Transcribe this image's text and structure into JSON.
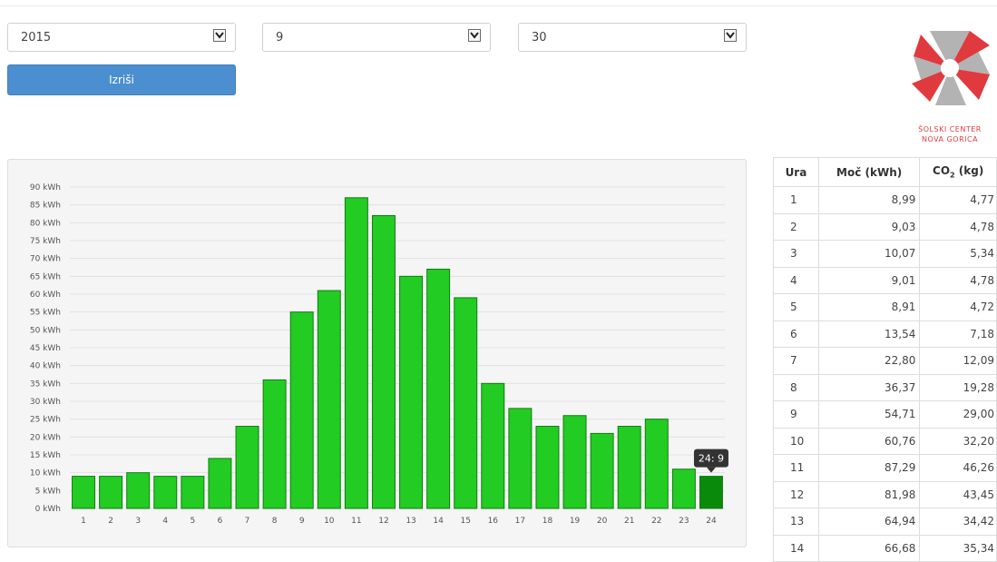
{
  "filters": {
    "year": "2015",
    "month": "9",
    "day": "30",
    "button_label": "Izriši"
  },
  "logo": {
    "line1": "ŠOLSKI CENTER",
    "line2": "NOVA GORICA"
  },
  "chart_data": {
    "type": "bar",
    "categories": [
      "1",
      "2",
      "3",
      "4",
      "5",
      "6",
      "7",
      "8",
      "9",
      "10",
      "11",
      "12",
      "13",
      "14",
      "15",
      "16",
      "17",
      "18",
      "19",
      "20",
      "21",
      "22",
      "23",
      "24"
    ],
    "values": [
      9,
      9,
      10,
      9,
      9,
      14,
      23,
      36,
      55,
      61,
      87,
      82,
      65,
      67,
      59,
      35,
      28,
      23,
      26,
      21,
      23,
      25,
      11,
      9
    ],
    "ylim": [
      0,
      90
    ],
    "ytick_step": 5,
    "ytick_suffix": " kWh",
    "bar_color": "#22cc22",
    "bar_stroke": "#137a13",
    "highlight_color": "#0a8a0a",
    "highlight_index": 23,
    "tooltip": "24: 9",
    "grid": true,
    "title": "",
    "xlabel": "",
    "ylabel": ""
  },
  "table": {
    "headers": [
      "Ura",
      "Moč (kWh)",
      "CO",
      "2",
      " (kg)"
    ],
    "rows": [
      [
        "1",
        "8,99",
        "4,77"
      ],
      [
        "2",
        "9,03",
        "4,78"
      ],
      [
        "3",
        "10,07",
        "5,34"
      ],
      [
        "4",
        "9,01",
        "4,78"
      ],
      [
        "5",
        "8,91",
        "4,72"
      ],
      [
        "6",
        "13,54",
        "7,18"
      ],
      [
        "7",
        "22,80",
        "12,09"
      ],
      [
        "8",
        "36,37",
        "19,28"
      ],
      [
        "9",
        "54,71",
        "29,00"
      ],
      [
        "10",
        "60,76",
        "32,20"
      ],
      [
        "11",
        "87,29",
        "46,26"
      ],
      [
        "12",
        "81,98",
        "43,45"
      ],
      [
        "13",
        "64,94",
        "34,42"
      ],
      [
        "14",
        "66,68",
        "35,34"
      ]
    ]
  },
  "colors": {
    "button": "#4b8fd0",
    "logo_red": "#e03a3e",
    "logo_gray": "#b3b3b3"
  }
}
